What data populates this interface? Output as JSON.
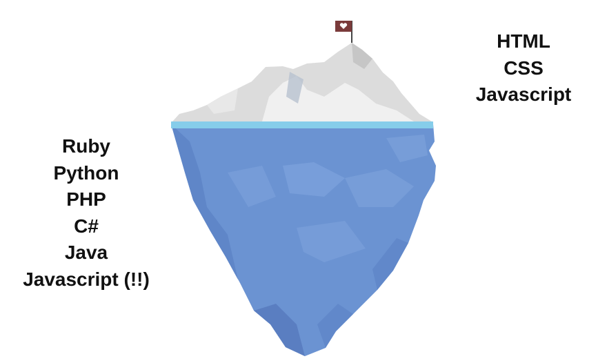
{
  "above_waterline": {
    "items": [
      "HTML",
      "CSS",
      "Javascript"
    ]
  },
  "below_waterline": {
    "items": [
      "Ruby",
      "Python",
      "PHP",
      "C#",
      "Java",
      "Javascript (!!)"
    ]
  },
  "colors": {
    "ice_tip": "#dcdcdc",
    "ice_highlight": "#f2f2f2",
    "water_line": "#86cdea",
    "underwater": "#6b93d2",
    "underwater_dark": "#5c83c6",
    "underwater_light": "#7aa0da",
    "flag": "#7a3b3b",
    "text": "#111111"
  },
  "icons": {
    "flag": "flag-icon",
    "flag_symbol": "heart-icon"
  }
}
